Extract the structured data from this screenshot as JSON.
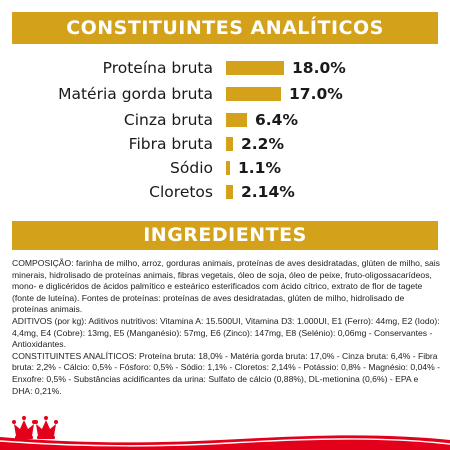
{
  "header": {
    "title": "CONSTITUINTES ANALÍTICOS"
  },
  "analysis": {
    "rows": [
      {
        "label": "Proteína bruta",
        "value": "18.0%",
        "amount": 18.0
      },
      {
        "label": "Matéria gorda bruta",
        "value": "17.0%",
        "amount": 17.0
      },
      {
        "label": "Cinza bruta",
        "value": "6.4%",
        "amount": 6.4
      },
      {
        "label": "Fibra bruta",
        "value": "2.2%",
        "amount": 2.2
      },
      {
        "label": "Sódio",
        "value": "1.1%",
        "amount": 1.1
      },
      {
        "label": "Cloretos",
        "value": "2.14%",
        "amount": 2.14
      }
    ]
  },
  "ingredients": {
    "title": "INGREDIENTES",
    "composition": "COMPOSIÇÃO: farinha de milho, arroz, gorduras animais, proteínas de aves desidratadas, glúten de milho, sais minerais, hidrolisado de proteínas animais, fibras vegetais, óleo de soja, óleo de peixe, fruto-oligossacarídeos, mono- e diglicéridos de ácidos palmítico e esteárico esterificados com ácido cítrico, extrato de flor de tagete (fonte de luteína). Fontes de proteínas: proteínas de aves desidratadas, glúten de milho, hidrolisado de proteínas animais.",
    "additives": "ADITIVOS (por kg): Aditivos nutritivos: Vitamina A: 15.500UI, Vitamina D3: 1.000UI, E1 (Ferro): 44mg, E2 (Iodo): 4,4mg, E4 (Cobre): 13mg, E5 (Manganésio): 57mg, E6 (Zinco): 147mg, E8 (Selénio): 0,06mg - Conservantes - Antioxidantes.",
    "analytical": "CONSTITUINTES ANALÍTICOS: Proteína bruta: 18,0% - Matéria gorda bruta: 17,0% - Cinza bruta: 6,4% - Fibra bruta: 2,2% - Cálcio: 0,5% - Fósforo: 0,5% - Sódio: 1,1% - Cloretos: 2,14% - Potássio: 0,8% - Magnésio: 0,04% - Enxofre: 0,5% - Substâncias acidificantes da urina: Sulfato de cálcio (0,88%), DL-metionina (0,6%) - EPA e DHA: 0,21%."
  },
  "brand": {
    "name": "Royal Canin",
    "color": "#e2001a",
    "accent": "#d4a21a"
  }
}
